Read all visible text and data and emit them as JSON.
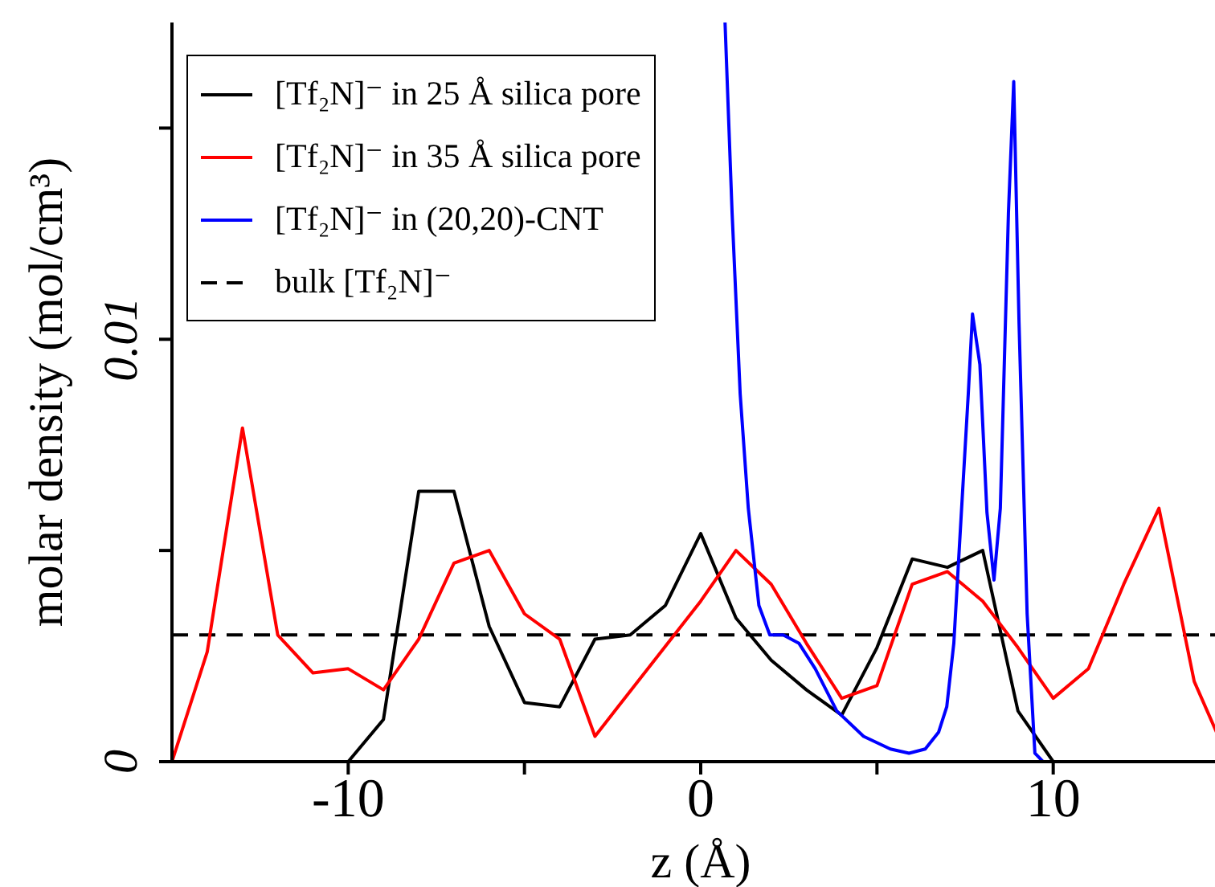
{
  "chart_data": {
    "type": "line",
    "xlabel": "z (Å)",
    "ylabel": "molar density (mol/cm³)",
    "xlim": [
      -15,
      15
    ],
    "ylim": [
      0,
      0.0175
    ],
    "xticks": [
      -10,
      {
        "value": -5,
        "label": null
      },
      0,
      {
        "value": 5,
        "label": null
      },
      10
    ],
    "yticks": [
      0,
      {
        "value": 0.005,
        "label": null
      },
      0.01,
      {
        "value": 0.015,
        "label": null
      }
    ],
    "legend": "top left",
    "marker": "none",
    "line_style": "solid",
    "ref_lines": [
      {
        "axis": "y",
        "value": 0.003,
        "label": "bulk [Tf₂N]⁻",
        "color": "#000000",
        "line_style": "dashed"
      }
    ],
    "series": [
      {
        "name": "[Tf₂N]⁻ in 25 Å silica pore",
        "color": "#000000",
        "x": [
          -10,
          -9,
          -8,
          -7,
          -6,
          -5,
          -4,
          -3,
          -2,
          -1,
          0,
          1,
          2,
          3,
          4,
          5,
          6,
          7,
          8,
          9,
          10
        ],
        "values": [
          0,
          0.001,
          0.0064,
          0.0064,
          0.0032,
          0.0014,
          0.0013,
          0.0029,
          0.003,
          0.0037,
          0.0054,
          0.0034,
          0.0024,
          0.0017,
          0.0011,
          0.0027,
          0.0048,
          0.0046,
          0.005,
          0.0012,
          0
        ]
      },
      {
        "name": "[Tf₂N]⁻ in 35 Å silica pore",
        "color": "#ff0000",
        "x": [
          -15,
          -14,
          -13,
          -12,
          -11,
          -10,
          -9,
          -8,
          -7,
          -6,
          -5,
          -4,
          -3,
          0,
          1,
          2,
          3,
          4,
          5,
          6,
          7,
          8,
          9,
          10,
          11,
          12,
          13,
          14,
          15
        ],
        "values": [
          0,
          0.0026,
          0.0079,
          0.003,
          0.0021,
          0.0022,
          0.0017,
          0.0029,
          0.0047,
          0.005,
          0.0035,
          0.0029,
          0.0006,
          0.0038,
          0.005,
          0.0042,
          0.0028,
          0.0015,
          0.0018,
          0.0042,
          0.0045,
          0.0038,
          0.0027,
          0.0015,
          0.0022,
          0.0042,
          0.006,
          0.0019,
          0
        ]
      },
      {
        "name": "[Tf₂N]⁻ in (20,20)-CNT",
        "color": "#0000ff",
        "x": [
          0.69,
          0.89,
          1.12,
          1.35,
          1.65,
          1.96,
          2.34,
          2.79,
          3.25,
          3.86,
          4.62,
          5.38,
          5.91,
          6.37,
          6.75,
          6.98,
          7.18,
          7.36,
          7.59,
          7.71,
          7.92,
          8.12,
          8.32,
          8.5,
          8.73,
          8.88,
          9.03,
          9.26,
          9.48,
          9.71
        ],
        "values": [
          0.0175,
          0.013,
          0.0087,
          0.006,
          0.0037,
          0.003,
          0.003,
          0.0028,
          0.0022,
          0.0012,
          0.0006,
          0.0003,
          0.0002,
          0.0003,
          0.0007,
          0.0013,
          0.0028,
          0.0054,
          0.0087,
          0.0106,
          0.0094,
          0.0059,
          0.0043,
          0.006,
          0.013,
          0.0161,
          0.0104,
          0.0035,
          0.0002,
          0
        ]
      }
    ]
  }
}
